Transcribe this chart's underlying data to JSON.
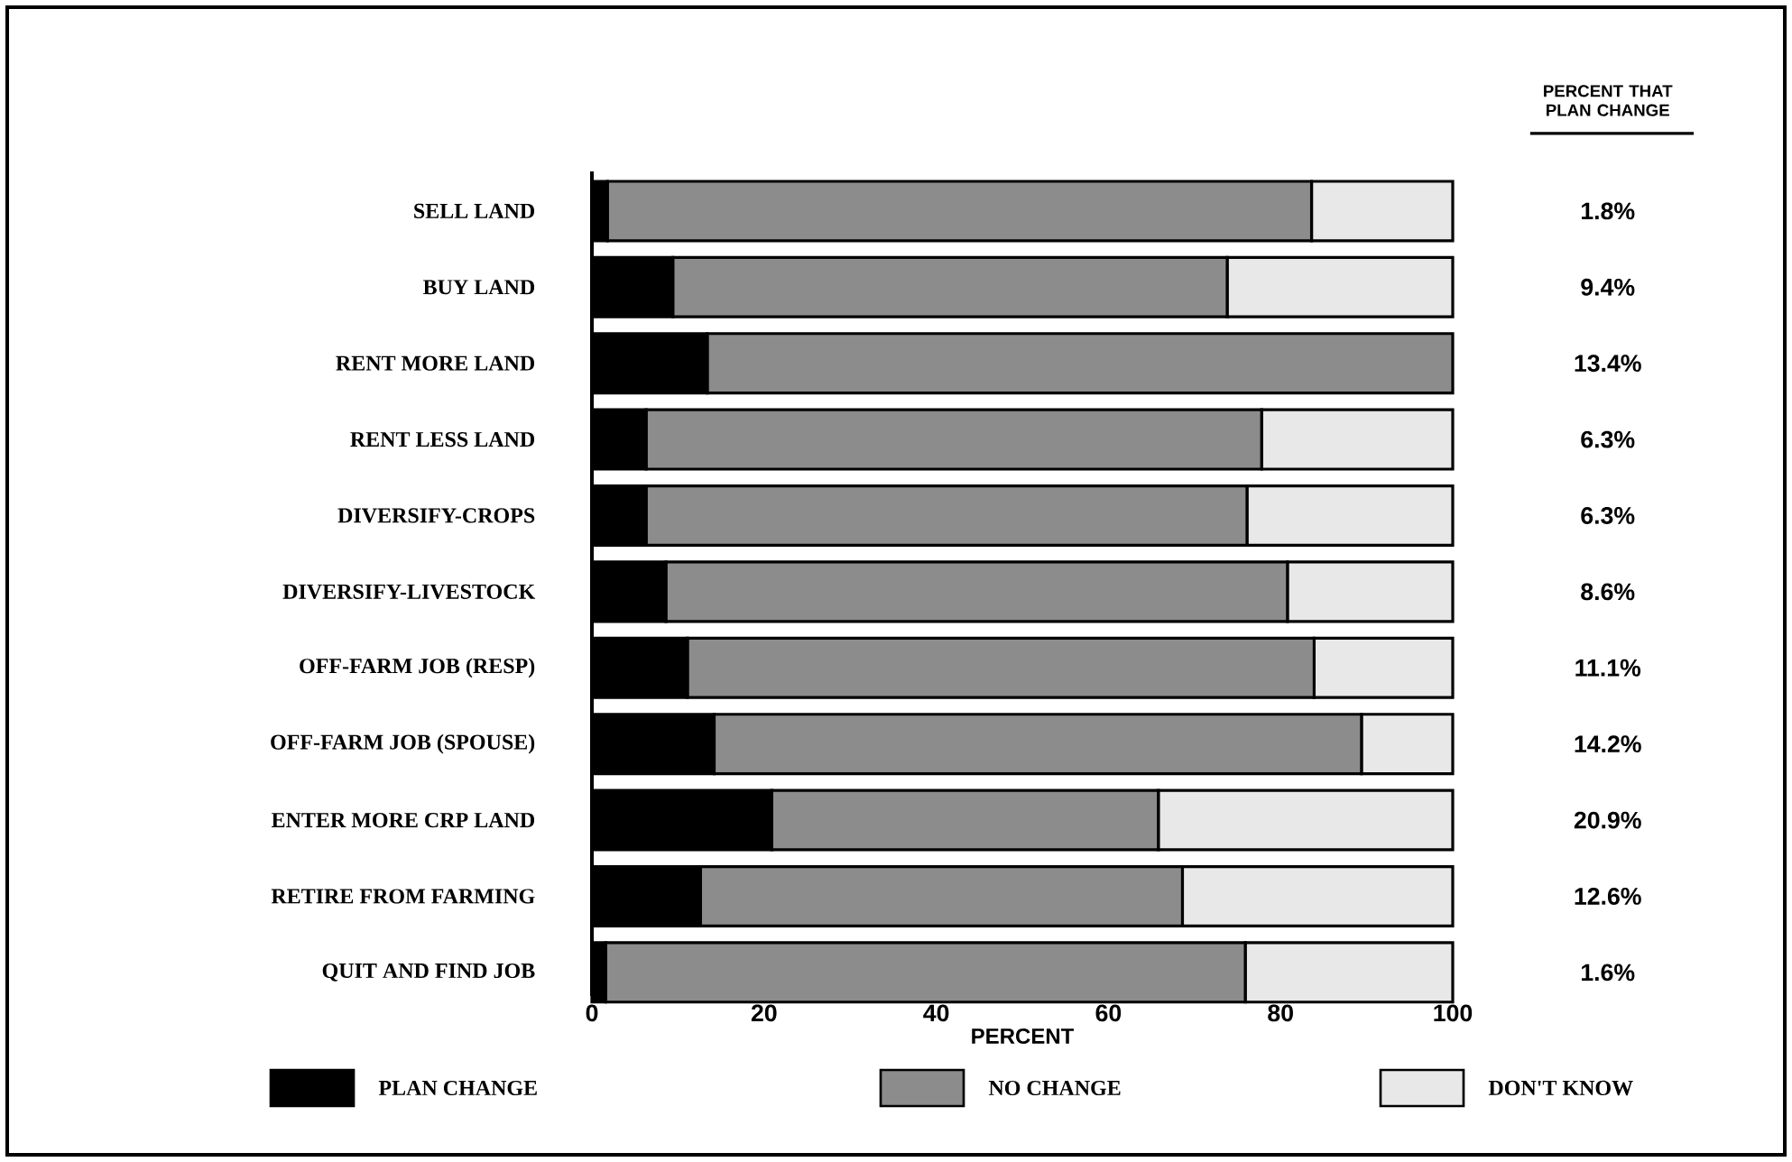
{
  "chart_data": {
    "type": "bar",
    "orientation": "horizontal",
    "stacked": true,
    "categories": [
      "SELL LAND",
      "BUY LAND",
      "RENT MORE LAND",
      "RENT LESS LAND",
      "DIVERSIFY-CROPS",
      "DIVERSIFY-LIVESTOCK",
      "OFF-FARM JOB (RESP)",
      "OFF-FARM JOB (SPOUSE)",
      "ENTER MORE CRP LAND",
      "RETIRE FROM FARMING",
      "QUIT AND FIND JOB"
    ],
    "series": [
      {
        "name": "PLAN CHANGE",
        "color": "#000000",
        "values": [
          1.8,
          9.4,
          13.4,
          6.3,
          6.3,
          8.6,
          11.1,
          14.2,
          20.9,
          12.6,
          1.6
        ],
        "value_labels": [
          "1.8%",
          "9.4%",
          "13.4%",
          "6.3%",
          "6.3%",
          "8.6%",
          "11.1%",
          "14.2%",
          "20.9%",
          "12.6%",
          "1.6%"
        ]
      },
      {
        "name": "NO CHANGE",
        "color": "#8c8c8c",
        "values": [
          81.8,
          64.4,
          86.6,
          71.5,
          69.8,
          72.2,
          72.8,
          75.2,
          44.9,
          56.0,
          74.3
        ]
      },
      {
        "name": "DON'T KNOW",
        "color": "#e8e8e8",
        "values": [
          16.4,
          26.2,
          0,
          22.2,
          23.9,
          19.2,
          16.1,
          10.6,
          34.2,
          31.4,
          24.1
        ]
      }
    ],
    "xlabel": "PERCENT",
    "xlim": [
      0,
      100
    ],
    "xticks": [
      0,
      20,
      40,
      60,
      80,
      100
    ],
    "annotations": [
      "PERCENT THAT PLAN CHANGE"
    ],
    "legend": "bottom"
  }
}
